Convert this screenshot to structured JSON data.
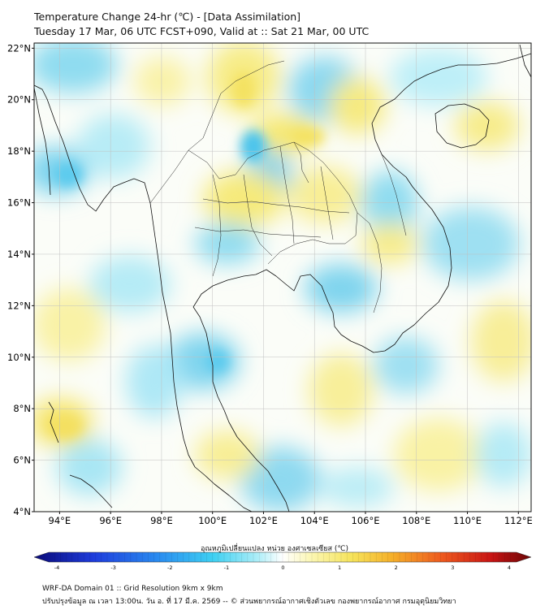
{
  "title_line1": "Temperature Change 24-hr (℃) - [Data Assimilation]",
  "title_line2": "Tuesday 17 Mar, 06 UTC FCST+090, Valid at :: Sat 21 Mar, 00 UTC",
  "map": {
    "lon_range": [
      93,
      112.5
    ],
    "lat_range": [
      4,
      22.2
    ],
    "lat_ticks": [
      {
        "value": 22,
        "label": "22°N"
      },
      {
        "value": 20,
        "label": "20°N"
      },
      {
        "value": 18,
        "label": "18°N"
      },
      {
        "value": 16,
        "label": "16°N"
      },
      {
        "value": 14,
        "label": "14°N"
      },
      {
        "value": 12,
        "label": "12°N"
      },
      {
        "value": 10,
        "label": "10°N"
      },
      {
        "value": 8,
        "label": "8°N"
      },
      {
        "value": 6,
        "label": "6°N"
      },
      {
        "value": 4,
        "label": "4°N"
      }
    ],
    "lon_ticks": [
      {
        "value": 94,
        "label": "94°E"
      },
      {
        "value": 96,
        "label": "96°E"
      },
      {
        "value": 98,
        "label": "98°E"
      },
      {
        "value": 100,
        "label": "100°E"
      },
      {
        "value": 102,
        "label": "102°E"
      },
      {
        "value": 104,
        "label": "104°E"
      },
      {
        "value": 106,
        "label": "106°E"
      },
      {
        "value": 108,
        "label": "108°E"
      },
      {
        "value": 110,
        "label": "110°E"
      },
      {
        "value": 112,
        "label": "112°E"
      }
    ],
    "gridlines": true,
    "colors": {
      "warm": "#f7ee8c",
      "cool": "#7fdcf0",
      "neutral": "#ffffff"
    }
  },
  "colorbar": {
    "label": "อุณหภูมิเปลี่ยนแปลง หน่วย องศาเซลเซียส (℃)",
    "range": [
      -4,
      4
    ],
    "ticks": [
      "-4",
      "-3",
      "-2",
      "-1",
      "0",
      "1",
      "2",
      "3",
      "4"
    ]
  },
  "footer_line1": "WRF-DA Domain 01 :: Grid Resolution 9km x 9km",
  "footer_line2": "ปรับปรุงข้อมูล ณ เวลา 13:00น. วัน อ. ที่ 17 มี.ค. 2569 -- © ส่วนพยากรณ์อากาศเชิงตัวเลข กองพยากรณ์อากาศ กรมอุตุนิยมวิทยา"
}
